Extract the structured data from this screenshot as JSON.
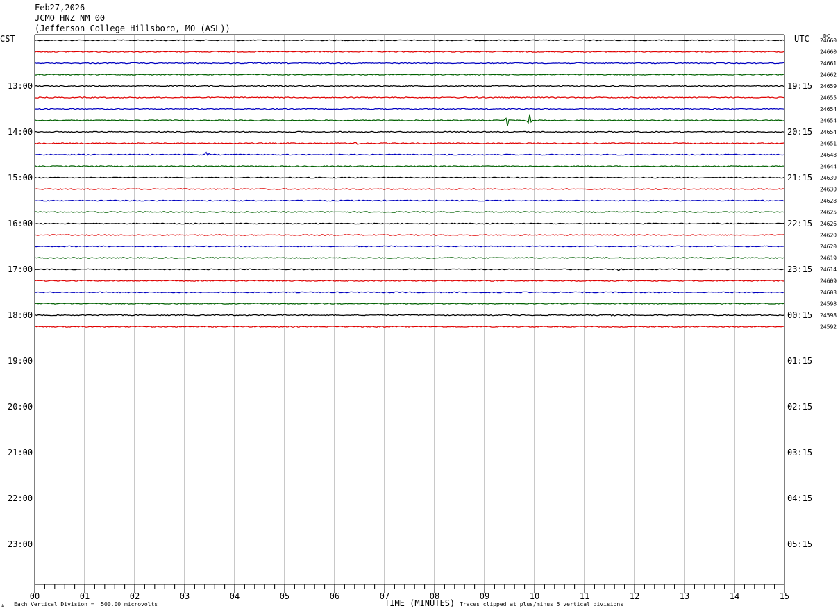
{
  "header": {
    "date": "Feb27,2026",
    "station": "JCMO HNZ NM 00",
    "location": "(Jefferson College Hillsboro, MO (ASL))"
  },
  "left_zone": "CST",
  "right_zone": "UTC",
  "dc_label": "DC",
  "footer": {
    "division": "Each Vertical Division =  500.00 microvolts",
    "clipped": "Traces clipped at plus/minus 5 vertical divisions",
    "mark": "A"
  },
  "chart_data": {
    "type": "line",
    "xlabel": "TIME (MINUTES)",
    "xlim": [
      0,
      15
    ],
    "x_ticks": [
      "00",
      "01",
      "02",
      "03",
      "04",
      "05",
      "06",
      "07",
      "08",
      "09",
      "10",
      "11",
      "12",
      "13",
      "14",
      "15"
    ],
    "hour_labels_left": [
      "13:00",
      "14:00",
      "15:00",
      "16:00",
      "17:00",
      "18:00",
      "19:00",
      "20:00",
      "21:00",
      "22:00",
      "23:00"
    ],
    "hour_labels_right": [
      "19:15",
      "20:15",
      "21:15",
      "22:15",
      "23:15",
      "00:15",
      "01:15",
      "02:15",
      "03:15",
      "04:15",
      "05:15"
    ],
    "rows_per_hour": 4,
    "trace_colors": [
      "#000000",
      "#e00000",
      "#0000c0",
      "#006000"
    ],
    "traces_recorded": 26,
    "dc_values": [
      "24660",
      "24660",
      "24661",
      "24662",
      "24659",
      "24655",
      "24654",
      "24654",
      "24654",
      "24651",
      "24648",
      "24644",
      "24639",
      "24630",
      "24628",
      "24625",
      "24626",
      "24620",
      "24620",
      "24619",
      "24614",
      "24609",
      "24603",
      "24598",
      "24598",
      "24592"
    ],
    "events": [
      {
        "row": 7,
        "minute": 9.45,
        "amplitude": 1.4
      },
      {
        "row": 7,
        "minute": 9.9,
        "amplitude": 0.7
      },
      {
        "row": 10,
        "minute": 3.45,
        "amplitude": 0.35
      },
      {
        "row": 9,
        "minute": 6.45,
        "amplitude": 0.25
      },
      {
        "row": 20,
        "minute": 11.7,
        "amplitude": 0.2
      },
      {
        "row": 24,
        "minute": 11.55,
        "amplitude": 0.2
      }
    ]
  }
}
